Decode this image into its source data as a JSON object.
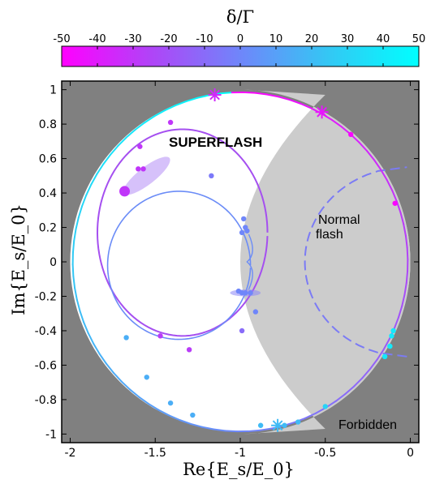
{
  "chart_data": {
    "type": "scatter",
    "title": "",
    "xlabel": "Re{E_s/E_0}",
    "ylabel": "Im{E_s/E_0}",
    "xlim": [
      -2.05,
      0.05
    ],
    "ylim": [
      -1.05,
      1.05
    ],
    "x_ticks": [
      "-2",
      "-1.5",
      "-1",
      "-0.5",
      "0"
    ],
    "y_ticks": [
      "1",
      "0.8",
      "0.6",
      "0.4",
      "0.2",
      "0",
      "-0.2",
      "-0.4",
      "-0.6",
      "-0.8",
      "-1"
    ],
    "grid": false,
    "colorbar": {
      "label": "δ/Γ",
      "range": [
        -50,
        50
      ],
      "ticks": [
        "-50",
        "-40",
        "-30",
        "-20",
        "-10",
        "0",
        "10",
        "20",
        "30",
        "40",
        "50"
      ],
      "colors": [
        "#ff00ff",
        "#9b59f7",
        "#6f86fa",
        "#33c8f4",
        "#00ffff"
      ]
    },
    "regions": [
      {
        "label": "SUPERFLASH",
        "color": "#ffffff"
      },
      {
        "label": "Normal flash",
        "color": "#cccccc"
      },
      {
        "label": "Forbidden",
        "color": "#808080"
      }
    ],
    "curves": [
      {
        "shape": "circle",
        "center": [
          -1.0,
          0.0
        ],
        "radius": 1.0,
        "detuning_range": [
          -50,
          50
        ]
      },
      {
        "shape": "lobe-pair",
        "extent_x": [
          -1.83,
          -0.95
        ],
        "extent_y": [
          -0.44,
          0.44
        ],
        "detuning": 0
      }
    ],
    "points": [
      {
        "x": -1.41,
        "y": 0.81,
        "d": -30
      },
      {
        "x": -1.59,
        "y": 0.67,
        "d": -30
      },
      {
        "x": -1.6,
        "y": 0.54,
        "d": -30
      },
      {
        "x": -1.57,
        "y": 0.54,
        "d": -30
      },
      {
        "x": -1.68,
        "y": 0.41,
        "d": -30
      },
      {
        "x": -0.35,
        "y": 0.74,
        "d": -48
      },
      {
        "x": -0.09,
        "y": 0.34,
        "d": -48
      },
      {
        "x": -1.17,
        "y": 0.5,
        "d": -5
      },
      {
        "x": -0.98,
        "y": 0.25,
        "d": 0
      },
      {
        "x": -0.97,
        "y": 0.2,
        "d": 0
      },
      {
        "x": -0.96,
        "y": 0.18,
        "d": 0
      },
      {
        "x": -0.99,
        "y": 0.17,
        "d": 0
      },
      {
        "x": -0.94,
        "y": -0.18,
        "d": 0
      },
      {
        "x": -0.97,
        "y": -0.18,
        "d": 0
      },
      {
        "x": -0.99,
        "y": -0.18,
        "d": 0
      },
      {
        "x": -1.01,
        "y": -0.17,
        "d": 0
      },
      {
        "x": -0.91,
        "y": -0.29,
        "d": 0
      },
      {
        "x": -0.99,
        "y": -0.4,
        "d": -10
      },
      {
        "x": -1.47,
        "y": -0.43,
        "d": -28
      },
      {
        "x": -1.3,
        "y": -0.51,
        "d": -28
      },
      {
        "x": -1.67,
        "y": -0.44,
        "d": 15
      },
      {
        "x": -1.55,
        "y": -0.67,
        "d": 15
      },
      {
        "x": -1.41,
        "y": -0.82,
        "d": 15
      },
      {
        "x": -1.28,
        "y": -0.89,
        "d": 15
      },
      {
        "x": -0.88,
        "y": -0.95,
        "d": 20
      },
      {
        "x": -0.74,
        "y": -0.95,
        "d": 20
      },
      {
        "x": -0.66,
        "y": -0.93,
        "d": 20
      },
      {
        "x": -0.5,
        "y": -0.84,
        "d": 30
      },
      {
        "x": -0.15,
        "y": -0.55,
        "d": 40
      },
      {
        "x": -0.12,
        "y": -0.49,
        "d": 40
      },
      {
        "x": -0.11,
        "y": -0.43,
        "d": 40
      },
      {
        "x": -0.1,
        "y": -0.4,
        "d": 40
      }
    ]
  }
}
